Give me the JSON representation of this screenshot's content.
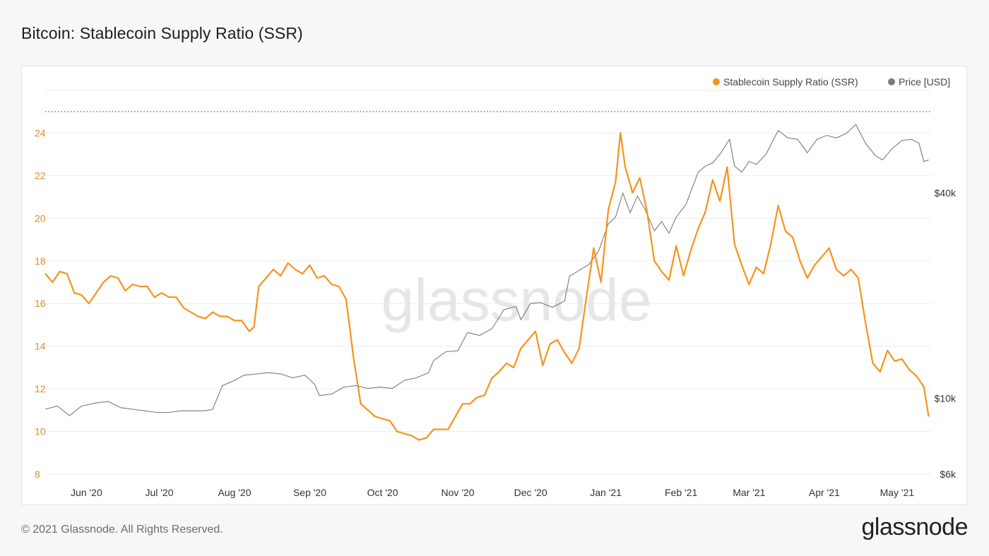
{
  "page": {
    "title": "Bitcoin: Stablecoin Supply Ratio (SSR)",
    "copyright": "© 2021 Glassnode. All Rights Reserved.",
    "brand_logo": "glassnode",
    "watermark": "glassnode"
  },
  "colors": {
    "ssr": "#f7931a",
    "price": "#7a7a7a",
    "grid": "#ebebeb",
    "ssr_tick": "#e08a2a",
    "price_tick": "#333333"
  },
  "chart_data": {
    "type": "line",
    "legend_position": "top-right",
    "grid": true,
    "x_ticks": [
      "Jun '20",
      "Jul '20",
      "Aug '20",
      "Sep '20",
      "Oct '20",
      "Nov '20",
      "Dec '20",
      "Jan '21",
      "Feb '21",
      "Mar '21",
      "Apr '21",
      "May '21"
    ],
    "x_tick_dates": [
      "2020-06-01",
      "2020-07-01",
      "2020-08-01",
      "2020-09-01",
      "2020-10-01",
      "2020-11-01",
      "2020-12-01",
      "2021-01-01",
      "2021-02-01",
      "2021-03-01",
      "2021-04-01",
      "2021-05-01"
    ],
    "x_range": [
      "2020-05-15",
      "2021-05-15"
    ],
    "y_left": {
      "ticks": [
        8,
        10,
        12,
        14,
        16,
        18,
        20,
        22,
        24
      ],
      "ylim": [
        8,
        26
      ],
      "reference_line": 25
    },
    "y_right": {
      "scale": "log",
      "ticks": [
        {
          "value": 6000,
          "label": "$6k"
        },
        {
          "value": 10000,
          "label": "$10k"
        },
        {
          "value": 40000,
          "label": "$40k"
        }
      ],
      "ylim": [
        6000,
        80000
      ]
    },
    "series": [
      {
        "name": "Stablecoin Supply Ratio (SSR)",
        "axis": "left",
        "points": [
          [
            "2020-05-15",
            17.4
          ],
          [
            "2020-05-18",
            17.0
          ],
          [
            "2020-05-21",
            17.5
          ],
          [
            "2020-05-24",
            17.4
          ],
          [
            "2020-05-27",
            16.5
          ],
          [
            "2020-05-30",
            16.4
          ],
          [
            "2020-06-02",
            16.0
          ],
          [
            "2020-06-05",
            16.5
          ],
          [
            "2020-06-08",
            17.0
          ],
          [
            "2020-06-11",
            17.3
          ],
          [
            "2020-06-14",
            17.2
          ],
          [
            "2020-06-17",
            16.6
          ],
          [
            "2020-06-20",
            16.9
          ],
          [
            "2020-06-23",
            16.8
          ],
          [
            "2020-06-26",
            16.8
          ],
          [
            "2020-06-29",
            16.3
          ],
          [
            "2020-07-02",
            16.5
          ],
          [
            "2020-07-05",
            16.3
          ],
          [
            "2020-07-08",
            16.3
          ],
          [
            "2020-07-11",
            15.8
          ],
          [
            "2020-07-14",
            15.6
          ],
          [
            "2020-07-17",
            15.4
          ],
          [
            "2020-07-20",
            15.3
          ],
          [
            "2020-07-23",
            15.6
          ],
          [
            "2020-07-26",
            15.4
          ],
          [
            "2020-07-29",
            15.4
          ],
          [
            "2020-08-01",
            15.2
          ],
          [
            "2020-08-04",
            15.2
          ],
          [
            "2020-08-07",
            14.7
          ],
          [
            "2020-08-09",
            14.9
          ],
          [
            "2020-08-11",
            16.8
          ],
          [
            "2020-08-14",
            17.2
          ],
          [
            "2020-08-17",
            17.6
          ],
          [
            "2020-08-20",
            17.3
          ],
          [
            "2020-08-23",
            17.9
          ],
          [
            "2020-08-26",
            17.6
          ],
          [
            "2020-08-29",
            17.4
          ],
          [
            "2020-09-01",
            17.8
          ],
          [
            "2020-09-04",
            17.2
          ],
          [
            "2020-09-07",
            17.3
          ],
          [
            "2020-09-10",
            16.9
          ],
          [
            "2020-09-13",
            16.8
          ],
          [
            "2020-09-16",
            16.2
          ],
          [
            "2020-09-19",
            13.5
          ],
          [
            "2020-09-22",
            11.3
          ],
          [
            "2020-09-25",
            11.0
          ],
          [
            "2020-09-28",
            10.7
          ],
          [
            "2020-10-01",
            10.6
          ],
          [
            "2020-10-04",
            10.5
          ],
          [
            "2020-10-07",
            10.0
          ],
          [
            "2020-10-10",
            9.9
          ],
          [
            "2020-10-13",
            9.8
          ],
          [
            "2020-10-16",
            9.6
          ],
          [
            "2020-10-19",
            9.7
          ],
          [
            "2020-10-22",
            10.1
          ],
          [
            "2020-10-25",
            10.1
          ],
          [
            "2020-10-28",
            10.1
          ],
          [
            "2020-10-31",
            10.7
          ],
          [
            "2020-11-03",
            11.3
          ],
          [
            "2020-11-06",
            11.3
          ],
          [
            "2020-11-09",
            11.6
          ],
          [
            "2020-11-12",
            11.7
          ],
          [
            "2020-11-15",
            12.5
          ],
          [
            "2020-11-18",
            12.8
          ],
          [
            "2020-11-21",
            13.2
          ],
          [
            "2020-11-24",
            13.0
          ],
          [
            "2020-11-27",
            13.9
          ],
          [
            "2020-11-30",
            14.3
          ],
          [
            "2020-12-03",
            14.7
          ],
          [
            "2020-12-06",
            13.1
          ],
          [
            "2020-12-09",
            14.1
          ],
          [
            "2020-12-12",
            14.3
          ],
          [
            "2020-12-15",
            13.7
          ],
          [
            "2020-12-18",
            13.2
          ],
          [
            "2020-12-21",
            13.9
          ],
          [
            "2020-12-24",
            16.3
          ],
          [
            "2020-12-27",
            18.6
          ],
          [
            "2020-12-30",
            17.0
          ],
          [
            "2021-01-02",
            20.4
          ],
          [
            "2021-01-05",
            21.7
          ],
          [
            "2021-01-07",
            24.0
          ],
          [
            "2021-01-09",
            22.4
          ],
          [
            "2021-01-12",
            21.2
          ],
          [
            "2021-01-15",
            21.9
          ],
          [
            "2021-01-18",
            20.3
          ],
          [
            "2021-01-21",
            18.0
          ],
          [
            "2021-01-24",
            17.5
          ],
          [
            "2021-01-27",
            17.1
          ],
          [
            "2021-01-30",
            18.7
          ],
          [
            "2021-02-02",
            17.3
          ],
          [
            "2021-02-05",
            18.5
          ],
          [
            "2021-02-08",
            19.5
          ],
          [
            "2021-02-11",
            20.3
          ],
          [
            "2021-02-14",
            21.8
          ],
          [
            "2021-02-17",
            20.8
          ],
          [
            "2021-02-20",
            22.4
          ],
          [
            "2021-02-23",
            18.8
          ],
          [
            "2021-02-26",
            17.8
          ],
          [
            "2021-03-01",
            16.9
          ],
          [
            "2021-03-04",
            17.7
          ],
          [
            "2021-03-07",
            17.4
          ],
          [
            "2021-03-10",
            18.8
          ],
          [
            "2021-03-13",
            20.6
          ],
          [
            "2021-03-16",
            19.4
          ],
          [
            "2021-03-19",
            19.1
          ],
          [
            "2021-03-22",
            18.0
          ],
          [
            "2021-03-25",
            17.2
          ],
          [
            "2021-03-28",
            17.8
          ],
          [
            "2021-03-31",
            18.2
          ],
          [
            "2021-04-03",
            18.6
          ],
          [
            "2021-04-06",
            17.6
          ],
          [
            "2021-04-09",
            17.3
          ],
          [
            "2021-04-12",
            17.6
          ],
          [
            "2021-04-15",
            17.2
          ],
          [
            "2021-04-18",
            15.1
          ],
          [
            "2021-04-21",
            13.2
          ],
          [
            "2021-04-24",
            12.8
          ],
          [
            "2021-04-27",
            13.8
          ],
          [
            "2021-04-30",
            13.3
          ],
          [
            "2021-05-03",
            13.4
          ],
          [
            "2021-05-06",
            12.9
          ],
          [
            "2021-05-09",
            12.6
          ],
          [
            "2021-05-12",
            12.1
          ],
          [
            "2021-05-14",
            10.7
          ]
        ]
      },
      {
        "name": "Price [USD]",
        "axis": "right",
        "points": [
          [
            "2020-05-15",
            9300
          ],
          [
            "2020-05-20",
            9500
          ],
          [
            "2020-05-25",
            8900
          ],
          [
            "2020-05-30",
            9500
          ],
          [
            "2020-06-05",
            9700
          ],
          [
            "2020-06-10",
            9800
          ],
          [
            "2020-06-15",
            9400
          ],
          [
            "2020-06-20",
            9300
          ],
          [
            "2020-06-25",
            9200
          ],
          [
            "2020-06-30",
            9100
          ],
          [
            "2020-07-05",
            9100
          ],
          [
            "2020-07-10",
            9200
          ],
          [
            "2020-07-15",
            9200
          ],
          [
            "2020-07-20",
            9200
          ],
          [
            "2020-07-23",
            9300
          ],
          [
            "2020-07-27",
            10900
          ],
          [
            "2020-08-01",
            11300
          ],
          [
            "2020-08-05",
            11700
          ],
          [
            "2020-08-10",
            11800
          ],
          [
            "2020-08-15",
            11900
          ],
          [
            "2020-08-20",
            11800
          ],
          [
            "2020-08-25",
            11500
          ],
          [
            "2020-08-30",
            11700
          ],
          [
            "2020-09-03",
            11000
          ],
          [
            "2020-09-05",
            10200
          ],
          [
            "2020-09-10",
            10300
          ],
          [
            "2020-09-15",
            10800
          ],
          [
            "2020-09-20",
            10900
          ],
          [
            "2020-09-25",
            10700
          ],
          [
            "2020-09-30",
            10800
          ],
          [
            "2020-10-05",
            10700
          ],
          [
            "2020-10-10",
            11300
          ],
          [
            "2020-10-15",
            11500
          ],
          [
            "2020-10-20",
            11900
          ],
          [
            "2020-10-22",
            12900
          ],
          [
            "2020-10-27",
            13700
          ],
          [
            "2020-11-01",
            13800
          ],
          [
            "2020-11-05",
            15600
          ],
          [
            "2020-11-10",
            15300
          ],
          [
            "2020-11-15",
            16000
          ],
          [
            "2020-11-20",
            18200
          ],
          [
            "2020-11-25",
            18600
          ],
          [
            "2020-11-27",
            17000
          ],
          [
            "2020-12-01",
            19000
          ],
          [
            "2020-12-05",
            19100
          ],
          [
            "2020-12-10",
            18500
          ],
          [
            "2020-12-15",
            19300
          ],
          [
            "2020-12-17",
            22800
          ],
          [
            "2020-12-20",
            23500
          ],
          [
            "2020-12-25",
            24700
          ],
          [
            "2020-12-29",
            27000
          ],
          [
            "2021-01-02",
            32500
          ],
          [
            "2021-01-05",
            34000
          ],
          [
            "2021-01-08",
            40000
          ],
          [
            "2021-01-11",
            35000
          ],
          [
            "2021-01-14",
            39200
          ],
          [
            "2021-01-17",
            36000
          ],
          [
            "2021-01-21",
            31000
          ],
          [
            "2021-01-24",
            33000
          ],
          [
            "2021-01-27",
            30500
          ],
          [
            "2021-01-30",
            34000
          ],
          [
            "2021-02-03",
            37000
          ],
          [
            "2021-02-08",
            46000
          ],
          [
            "2021-02-11",
            48000
          ],
          [
            "2021-02-14",
            49000
          ],
          [
            "2021-02-17",
            52000
          ],
          [
            "2021-02-21",
            57500
          ],
          [
            "2021-02-23",
            48000
          ],
          [
            "2021-02-26",
            46000
          ],
          [
            "2021-03-01",
            49500
          ],
          [
            "2021-03-04",
            48500
          ],
          [
            "2021-03-08",
            52000
          ],
          [
            "2021-03-13",
            61000
          ],
          [
            "2021-03-17",
            58000
          ],
          [
            "2021-03-21",
            57500
          ],
          [
            "2021-03-25",
            52500
          ],
          [
            "2021-03-29",
            57500
          ],
          [
            "2021-04-02",
            59000
          ],
          [
            "2021-04-06",
            58000
          ],
          [
            "2021-04-10",
            59800
          ],
          [
            "2021-04-14",
            63500
          ],
          [
            "2021-04-18",
            56000
          ],
          [
            "2021-04-22",
            51500
          ],
          [
            "2021-04-25",
            50000
          ],
          [
            "2021-04-29",
            54000
          ],
          [
            "2021-05-03",
            57000
          ],
          [
            "2021-05-07",
            57500
          ],
          [
            "2021-05-10",
            56000
          ],
          [
            "2021-05-12",
            49500
          ],
          [
            "2021-05-14",
            50000
          ]
        ]
      }
    ]
  }
}
